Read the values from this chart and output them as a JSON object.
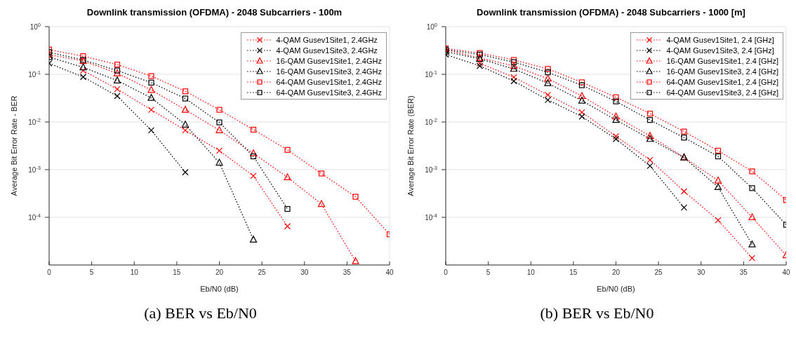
{
  "chart_data": [
    {
      "type": "line",
      "title": "Downlink transmission (OFDMA) - 2048 Subcarriers - 100m",
      "xlabel": "Eb/N0 (dB)",
      "ylabel": "Average Bit Error Rate - BER",
      "annotations": [
        "(a) BER vs Eb/N0"
      ],
      "x": [
        0,
        4,
        8,
        12,
        16,
        20,
        24,
        28,
        32,
        36,
        40
      ],
      "xlim": [
        0,
        40
      ],
      "xticks": [
        0,
        5,
        10,
        15,
        20,
        25,
        30,
        35,
        40
      ],
      "ylim": [
        1e-05,
        1
      ],
      "yticks": [
        {
          "value": 1,
          "label": "10$^{0}$"
        },
        {
          "value": 0.1,
          "label": "10$^{-1}$"
        },
        {
          "value": 0.01,
          "label": "10$^{-2}$"
        },
        {
          "value": 0.001,
          "label": "10$^{-3}$"
        },
        {
          "value": 0.0001,
          "label": "10$^{-4}$"
        }
      ],
      "log": "y",
      "grid": true,
      "legend": "top right",
      "line_style": "dotted",
      "series": [
        {
          "name": "4-QAM Gusev1Site1, 2.4GHz",
          "color": "#ff0000",
          "marker": "cross",
          "values": [
            null,
            0.12,
            0.049,
            0.018,
            0.0067,
            0.0025,
            0.00074,
            6.5e-05,
            null,
            null,
            null
          ]
        },
        {
          "name": "4-QAM Gusev1Site3, 2.4GHz",
          "color": "#000000",
          "marker": "cross",
          "values": [
            0.17,
            0.088,
            0.035,
            0.0067,
            0.00088,
            null,
            null,
            null,
            null,
            null,
            null
          ]
        },
        {
          "name": "16-QAM Gusev1Site1, 2.4GHz",
          "color": "#ff0000",
          "marker": "triangle",
          "values": [
            0.26,
            0.19,
            0.105,
            0.047,
            0.018,
            0.0067,
            0.0022,
            0.00069,
            0.00019,
            1.2e-05,
            null
          ]
        },
        {
          "name": "16-QAM Gusev1Site3, 2.4GHz",
          "color": "#000000",
          "marker": "triangle",
          "values": [
            0.23,
            0.14,
            0.074,
            0.032,
            0.0088,
            0.0014,
            3.4e-05,
            null,
            null,
            null,
            null
          ]
        },
        {
          "name": "64-QAM Gusev1Site1, 2.4GHz",
          "color": "#ff0000",
          "marker": "square",
          "values": [
            0.33,
            0.24,
            0.16,
            0.092,
            0.044,
            0.018,
            0.0069,
            0.0026,
            0.00083,
            0.00027,
            4.4e-05
          ]
        },
        {
          "name": "64-QAM Gusev1Site3, 2.4GHz",
          "color": "#000000",
          "marker": "square",
          "values": [
            0.29,
            0.2,
            0.12,
            0.067,
            0.031,
            0.0098,
            0.0019,
            0.00015,
            null,
            null,
            null
          ]
        }
      ]
    },
    {
      "type": "line",
      "title": "Downlink transmission (OFDMA) - 2048 Subcarriers - 1000 [m]",
      "xlabel": "Eb/N0 (dB)",
      "ylabel": "Average Bit Error Rate (BER)",
      "annotations": [
        "(b) BER vs Eb/N0"
      ],
      "x": [
        0,
        4,
        8,
        12,
        16,
        20,
        24,
        28,
        32,
        36,
        40
      ],
      "xlim": [
        0,
        40
      ],
      "xticks": [
        0,
        5,
        10,
        15,
        20,
        25,
        30,
        35,
        40
      ],
      "ylim": [
        1e-05,
        1
      ],
      "yticks": [
        {
          "value": 1,
          "label": "10$^{0}$"
        },
        {
          "value": 0.1,
          "label": "10$^{-1}$"
        },
        {
          "value": 0.01,
          "label": "10$^{-2}$"
        },
        {
          "value": 0.001,
          "label": "10$^{-3}$"
        },
        {
          "value": 0.0001,
          "label": "10$^{-4}$"
        }
      ],
      "log": "y",
      "grid": true,
      "legend": "top right",
      "line_style": "dotted",
      "series": [
        {
          "name": "4-QAM Gusev1Site1, 2.4 [GHz]",
          "color": "#ff0000",
          "marker": "cross",
          "values": [
            null,
            0.17,
            0.087,
            0.037,
            0.016,
            0.005,
            0.0016,
            0.00035,
            8.7e-05,
            1.4e-05,
            null
          ]
        },
        {
          "name": "4-QAM Gusev1Site3, 2.4 [GHz]",
          "color": "#000000",
          "marker": "cross",
          "values": [
            0.26,
            0.15,
            0.072,
            0.029,
            0.013,
            0.0044,
            0.0012,
            0.00016,
            null,
            null,
            null
          ]
        },
        {
          "name": "16-QAM Gusev1Site1, 2.4 [GHz]",
          "color": "#ff0000",
          "marker": "triangle",
          "values": [
            0.33,
            0.22,
            0.15,
            0.081,
            0.035,
            0.013,
            0.0051,
            0.0018,
            0.00059,
            0.0001,
            1.6e-05
          ]
        },
        {
          "name": "16-QAM Gusev1Site3, 2.4 [GHz]",
          "color": "#000000",
          "marker": "triangle",
          "values": [
            0.3,
            0.21,
            0.13,
            0.065,
            0.028,
            0.011,
            0.0044,
            0.0018,
            0.00043,
            2.7e-05,
            null
          ]
        },
        {
          "name": "64-QAM Gusev1Site1, 2.4 [GHz]",
          "color": "#ff0000",
          "marker": "square",
          "values": [
            0.35,
            0.28,
            0.2,
            0.13,
            0.068,
            0.033,
            0.015,
            0.0063,
            0.0025,
            0.00092,
            0.00023
          ]
        },
        {
          "name": "64-QAM Gusev1Site3, 2.4 [GHz]",
          "color": "#000000",
          "marker": "square",
          "values": [
            0.33,
            0.26,
            0.18,
            0.11,
            0.059,
            0.027,
            0.011,
            0.0047,
            0.0019,
            0.00041,
            7e-05
          ]
        }
      ]
    }
  ]
}
